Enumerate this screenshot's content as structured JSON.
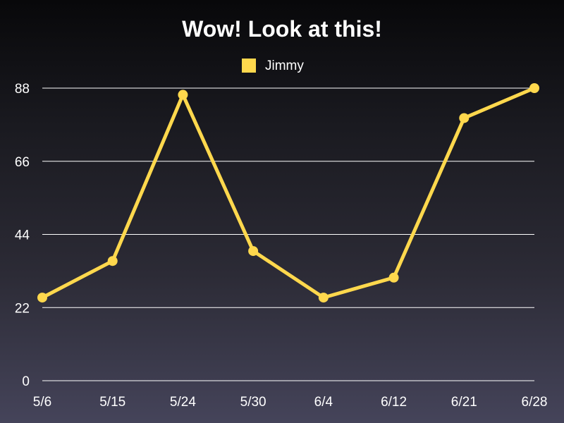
{
  "chart_data": {
    "type": "line",
    "title": "Wow!  Look at this!",
    "categories": [
      "5/6",
      "5/15",
      "5/24",
      "5/30",
      "6/4",
      "6/12",
      "6/21",
      "6/28"
    ],
    "series": [
      {
        "name": "Jimmy",
        "color": "#ffd84d",
        "values": [
          25,
          36,
          86,
          39,
          25,
          31,
          79,
          88
        ]
      }
    ],
    "ylim": [
      0,
      88
    ],
    "yticks": [
      0,
      22,
      44,
      66,
      88
    ],
    "xlabel": "",
    "ylabel": "",
    "grid": true,
    "legend_position": "top-center"
  }
}
